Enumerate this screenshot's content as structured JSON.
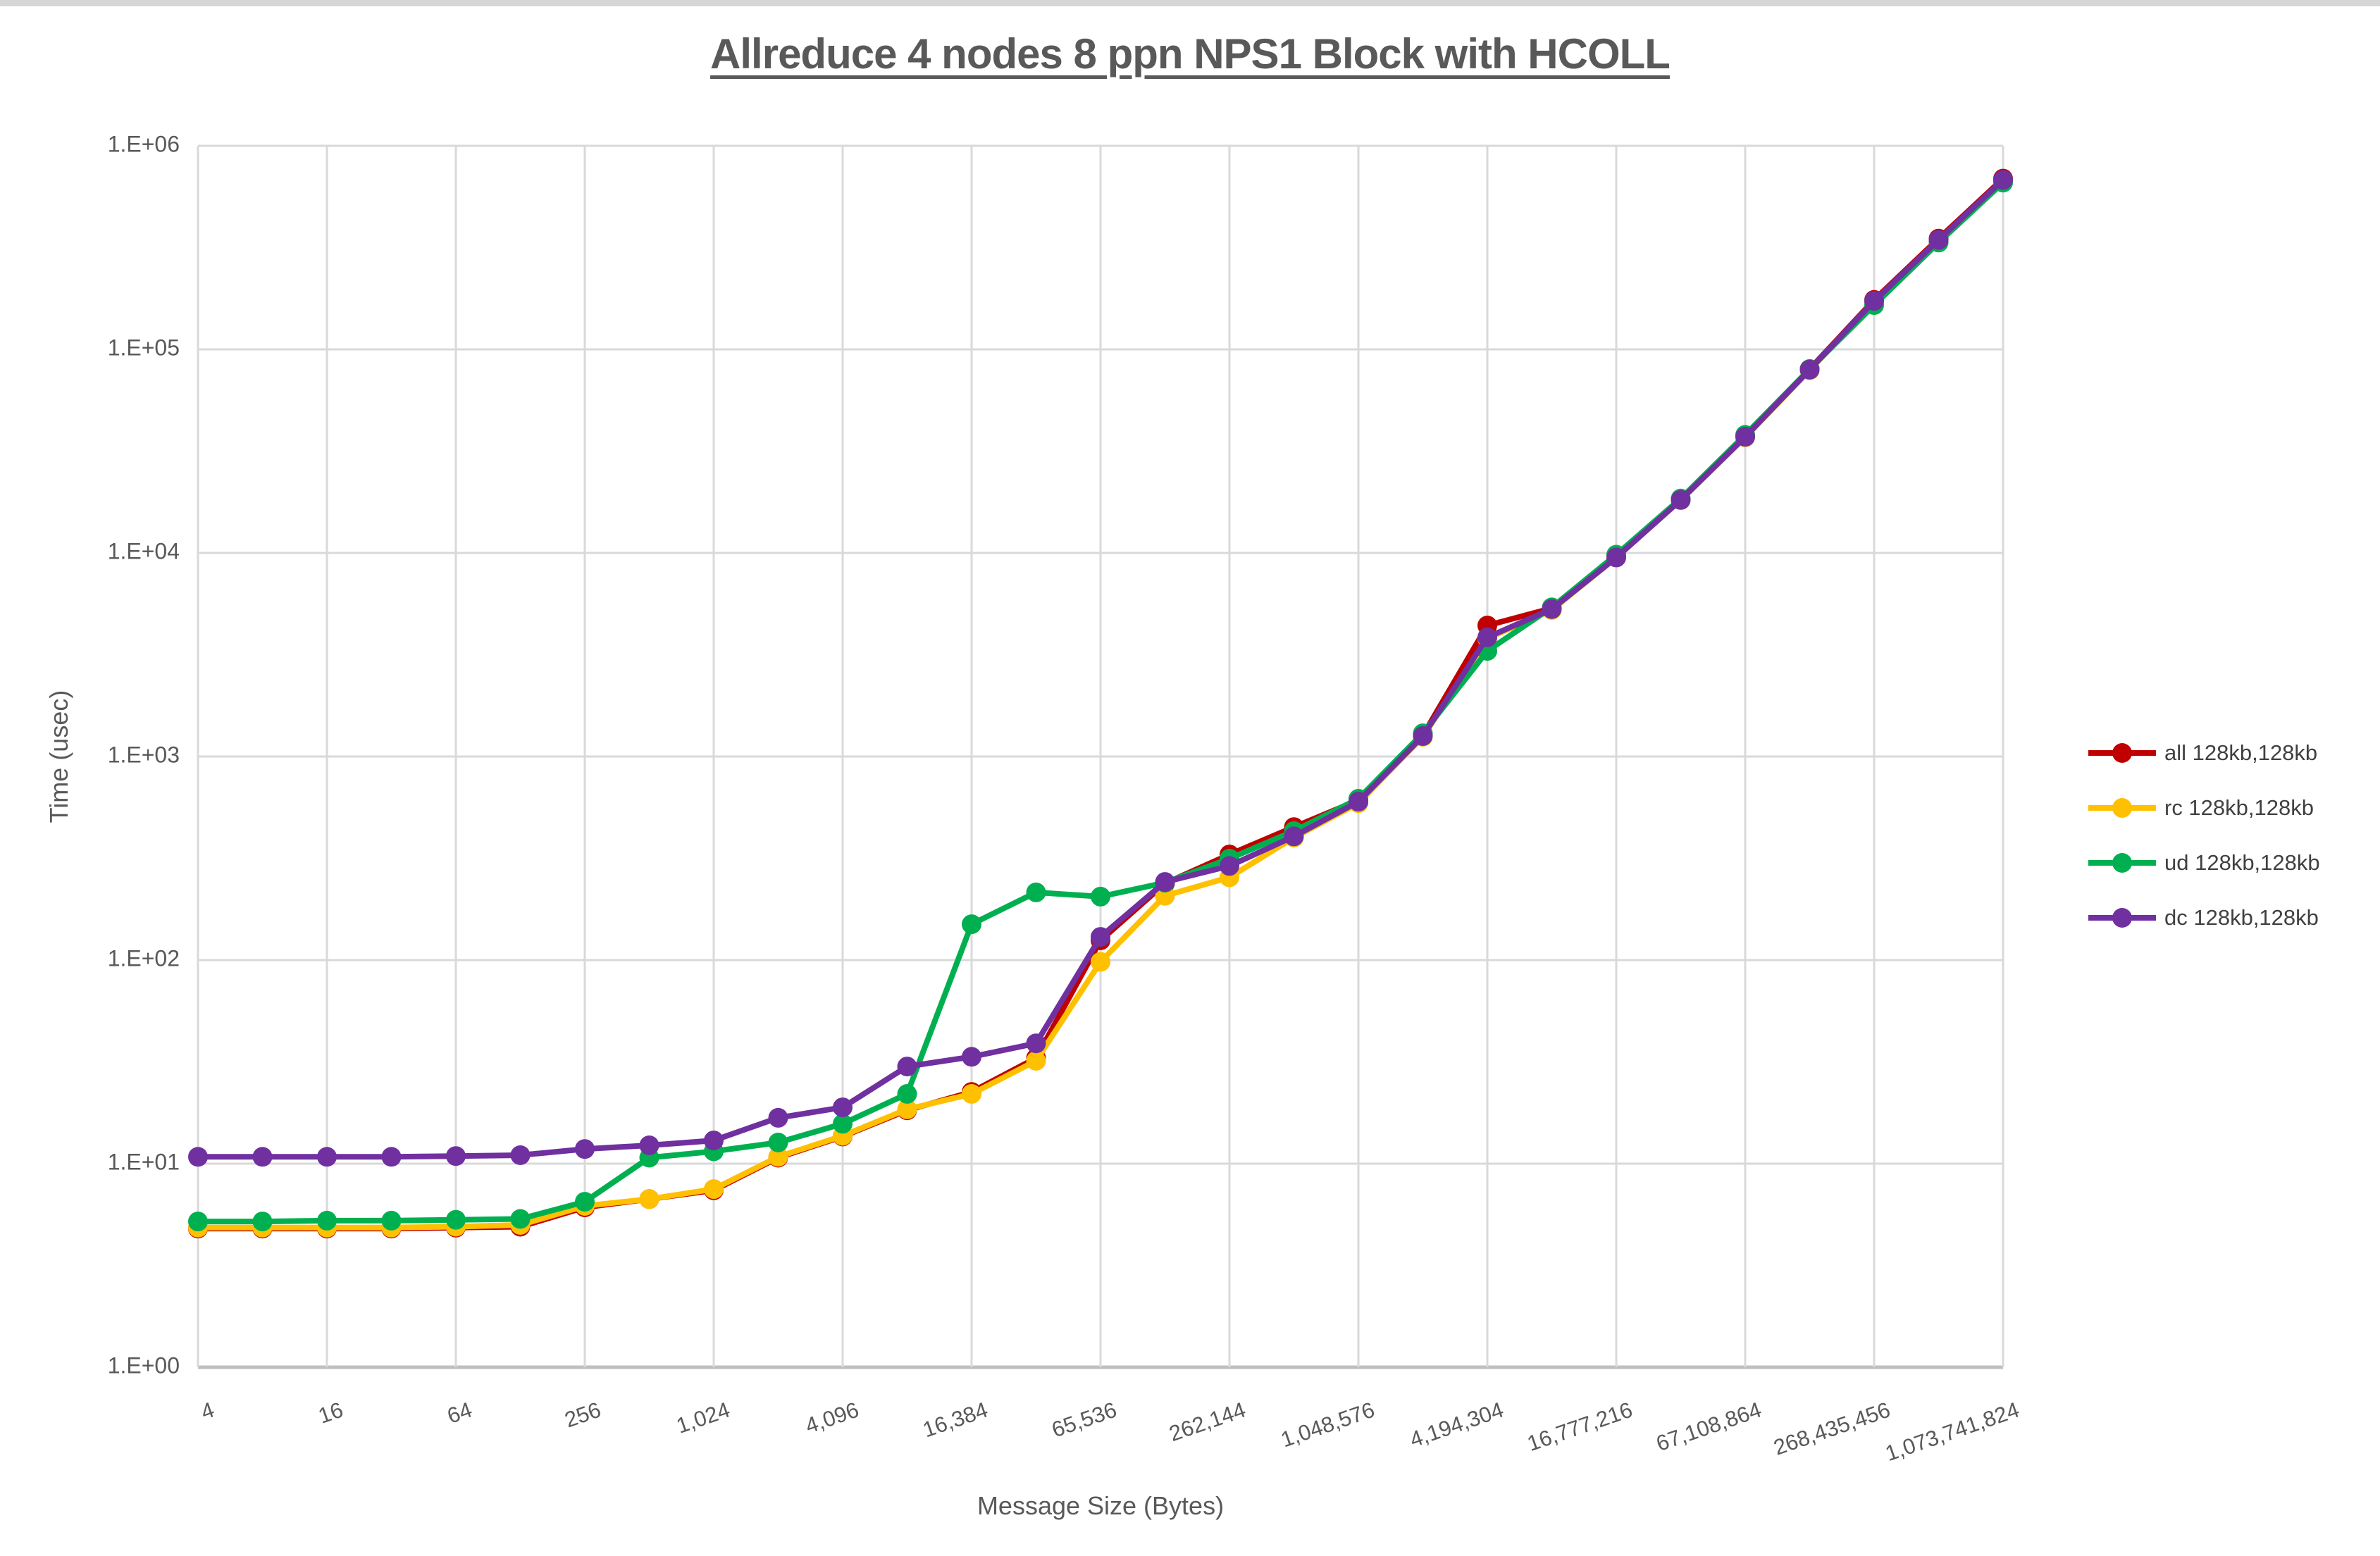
{
  "header": {
    "title": "Allreduce 4 nodes 8 ppn NPS1 Block with HCOLL"
  },
  "chart_data": {
    "type": "line",
    "title": "Allreduce 4 nodes 8 ppn NPS1 Block with HCOLL",
    "xlabel": "Message Size (Bytes)",
    "ylabel": "Time (usec)",
    "x_scale": "log2",
    "y_scale": "log10",
    "ylim": [
      1,
      1000000
    ],
    "xlim": [
      4,
      1073741824
    ],
    "grid": true,
    "legend_position": "right",
    "y_tick_labels": [
      "1.E+00",
      "1.E+01",
      "1.E+02",
      "1.E+03",
      "1.E+04",
      "1.E+05",
      "1.E+06"
    ],
    "x_tick_labels": [
      "4",
      "16",
      "64",
      "256",
      "1,024",
      "4,096",
      "16,384",
      "65,536",
      "262,144",
      "1,048,576",
      "4,194,304",
      "16,777,216",
      "67,108,864",
      "268,435,456",
      "1,073,741,824"
    ],
    "x": [
      4,
      8,
      16,
      32,
      64,
      128,
      256,
      512,
      1024,
      2048,
      4096,
      8192,
      16384,
      32768,
      65536,
      131072,
      262144,
      524288,
      1048576,
      2097152,
      4194304,
      8388608,
      16777216,
      33554432,
      67108864,
      134217728,
      268435456,
      536870912,
      1073741824
    ],
    "series": [
      {
        "name": "all 128kb,128kb",
        "color": "#C00000",
        "values": [
          4.8,
          4.8,
          4.8,
          4.8,
          4.85,
          4.9,
          6.1,
          6.7,
          7.4,
          10.7,
          13.6,
          18.3,
          22.5,
          33,
          125,
          238,
          330,
          450,
          610,
          1270,
          4400,
          5350,
          9600,
          18300,
          37500,
          80000,
          175000,
          350000,
          690000
        ]
      },
      {
        "name": "rc 128kb,128kb",
        "color": "#FFC000",
        "values": [
          4.85,
          4.85,
          4.85,
          4.85,
          4.9,
          5.0,
          6.2,
          6.7,
          7.5,
          10.8,
          13.7,
          18.5,
          22,
          32,
          98,
          207,
          255,
          400,
          590,
          1250,
          3800,
          5250,
          9500,
          18200,
          37000,
          79000,
          172000,
          340000,
          670000
        ]
      },
      {
        "name": "ud 128kb,128kb",
        "color": "#00B050",
        "values": [
          5.2,
          5.2,
          5.25,
          5.25,
          5.3,
          5.35,
          6.5,
          10.7,
          11.5,
          12.7,
          15.7,
          22,
          150,
          215,
          205,
          240,
          315,
          430,
          620,
          1300,
          3300,
          5400,
          9800,
          18500,
          38000,
          80000,
          165000,
          335000,
          660000
        ]
      },
      {
        "name": "dc 128kb,128kb",
        "color": "#7030A0",
        "values": [
          10.8,
          10.8,
          10.8,
          10.8,
          10.9,
          11.0,
          11.8,
          12.3,
          13.0,
          16.8,
          18.9,
          30,
          33.5,
          39,
          130,
          242,
          290,
          405,
          600,
          1260,
          3850,
          5300,
          9500,
          18200,
          37200,
          79500,
          173000,
          345000,
          680000
        ]
      }
    ]
  },
  "colors": {
    "gridline": "#D9D9D9",
    "axis_line": "#BFBFBF",
    "tick_text": "#595959",
    "axis_title_text": "#595959",
    "title_text": "#595959",
    "background": "#FFFFFF",
    "top_strip": "#D6D6D6"
  }
}
